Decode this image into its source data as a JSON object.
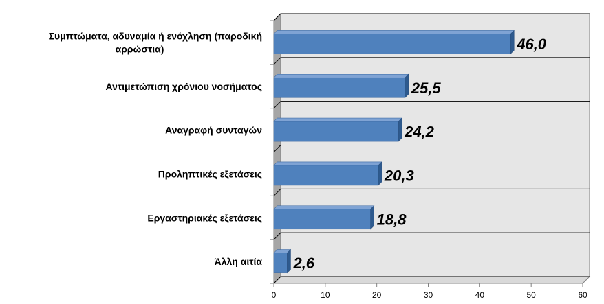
{
  "chart_data": {
    "type": "bar",
    "orientation": "horizontal",
    "categories": [
      "Συμπτώματα, αδυναμία ή ενόχληση (παροδική αρρώστια)",
      "Αντιμετώπιση χρόνιου νοσήματος",
      "Αναγραφή συνταγών",
      "Προληπτικές εξετάσεις",
      "Εργαστηριακές εξετάσεις",
      "Άλλη αιτία"
    ],
    "category_lines": [
      [
        "Συμπτώματα, αδυναμία ή ενόχληση (παροδική",
        "αρρώστια)"
      ],
      [
        "Αντιμετώπιση χρόνιου νοσήματος"
      ],
      [
        "Αναγραφή συνταγών"
      ],
      [
        "Προληπτικές εξετάσεις"
      ],
      [
        "Εργαστηριακές εξετάσεις"
      ],
      [
        "Άλλη αιτία"
      ]
    ],
    "values": [
      46.0,
      25.5,
      24.2,
      20.3,
      18.8,
      2.6
    ],
    "data_labels": [
      "46,0",
      "25,5",
      "24,2",
      "20,3",
      "18,8",
      "2,6"
    ],
    "xlim": [
      0,
      60
    ],
    "x_ticks": [
      0,
      10,
      20,
      30,
      40,
      50,
      60
    ],
    "title": "",
    "xlabel": "",
    "ylabel": "",
    "grid": true,
    "legend": "none",
    "colors": {
      "bar": "#4F81BD",
      "bar_top": "#7FA3D4",
      "bar_side": "#2E5A8E",
      "plot_background": "#E6E6E6",
      "wall": "#A6A6A6",
      "gridline": "#000000"
    }
  }
}
